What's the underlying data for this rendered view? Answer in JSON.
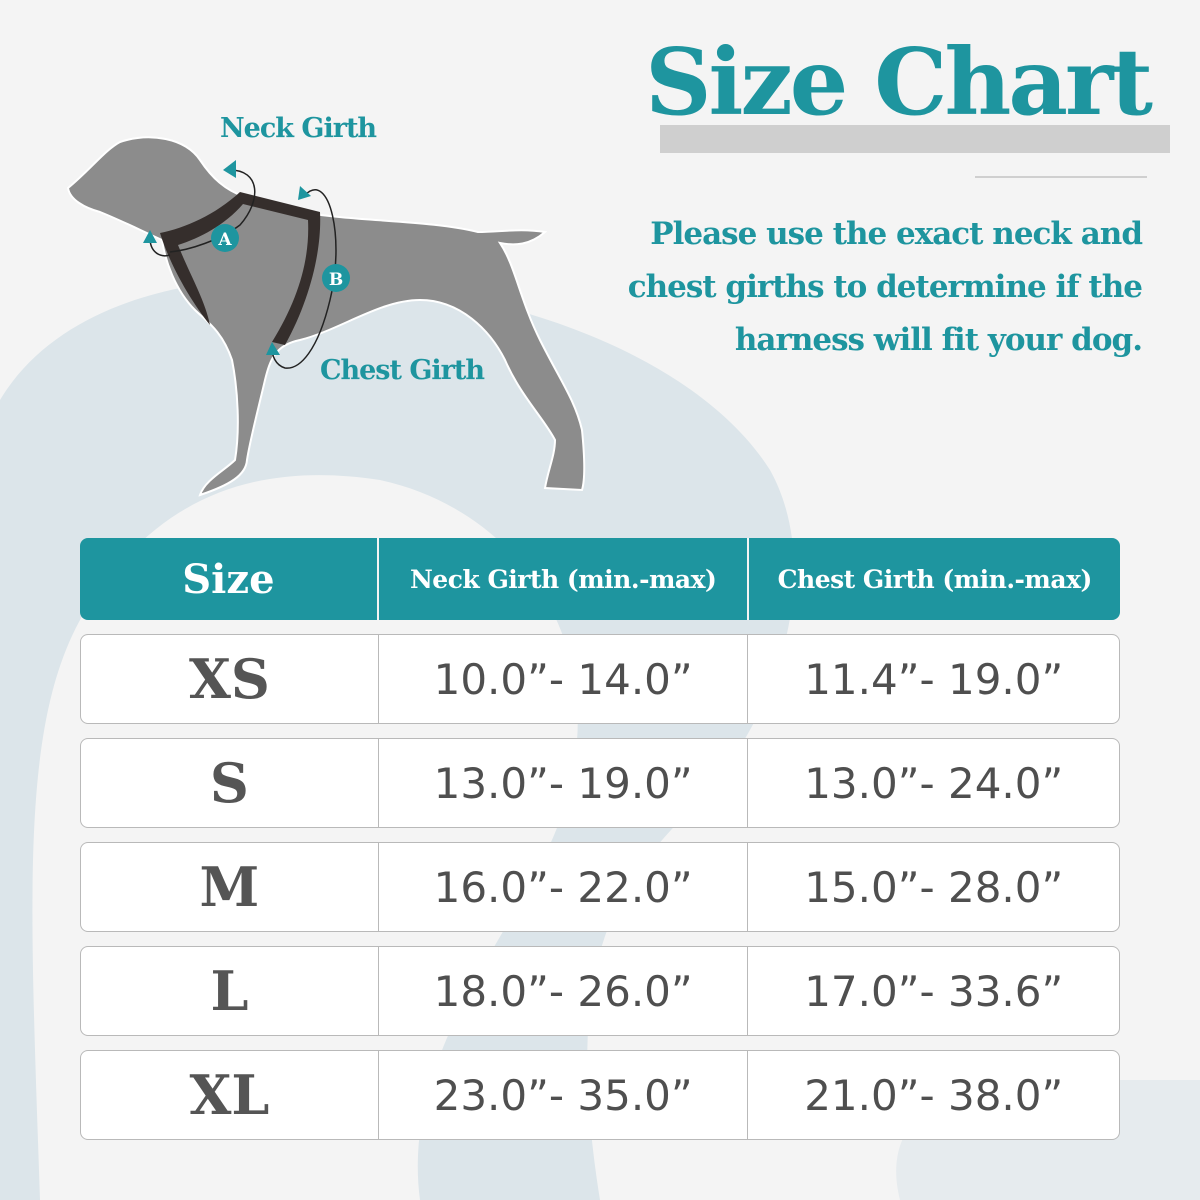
{
  "title": "Size Chart",
  "note": "Please use the exact neck and chest girths to determine if the harness will fit your dog.",
  "diagram": {
    "neck_label": "Neck Girth",
    "chest_label": "Chest Girth",
    "marker_a": "A",
    "marker_b": "B"
  },
  "colors": {
    "accent": "#1e959f",
    "dog": "#8c8c8c",
    "harness": "#352e2c",
    "blob": "#dce5ea"
  },
  "table": {
    "headers": [
      "Size",
      "Neck Girth (min.-max)",
      "Chest Girth (min.-max)"
    ],
    "rows": [
      [
        "XS",
        "10.0”- 14.0”",
        "11.4”- 19.0”"
      ],
      [
        "S",
        "13.0”- 19.0”",
        "13.0”- 24.0”"
      ],
      [
        "M",
        "16.0”- 22.0”",
        "15.0”- 28.0”"
      ],
      [
        "L",
        "18.0”- 26.0”",
        "17.0”- 33.6”"
      ],
      [
        "XL",
        "23.0”- 35.0”",
        "21.0”- 38.0”"
      ]
    ]
  }
}
